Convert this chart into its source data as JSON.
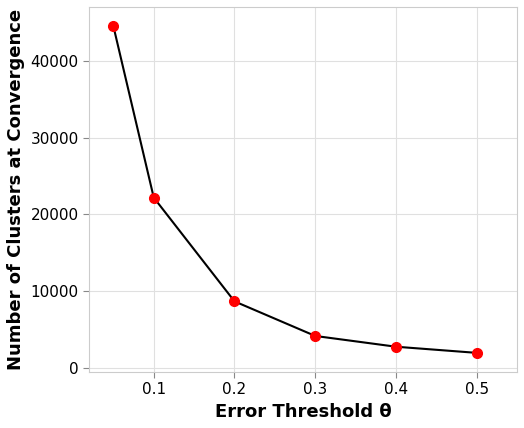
{
  "x": [
    0.05,
    0.1,
    0.2,
    0.3,
    0.4,
    0.5
  ],
  "y": [
    44500,
    22200,
    8700,
    4200,
    2800,
    2000
  ],
  "line_color": "#000000",
  "marker_color": "#ff0000",
  "marker_size": 7,
  "line_width": 1.5,
  "xlabel": "Error Threshold θ",
  "ylabel": "Number of Clusters at Convergence",
  "xlim": [
    0.02,
    0.55
  ],
  "ylim": [
    -500,
    47000
  ],
  "xticks": [
    0.1,
    0.2,
    0.3,
    0.4,
    0.5
  ],
  "yticks": [
    0,
    10000,
    20000,
    30000,
    40000
  ],
  "plot_background_color": "#ffffff",
  "fig_background_color": "#ffffff",
  "grid_color": "#e0e0e0",
  "tick_fontsize": 11,
  "label_fontsize": 13
}
